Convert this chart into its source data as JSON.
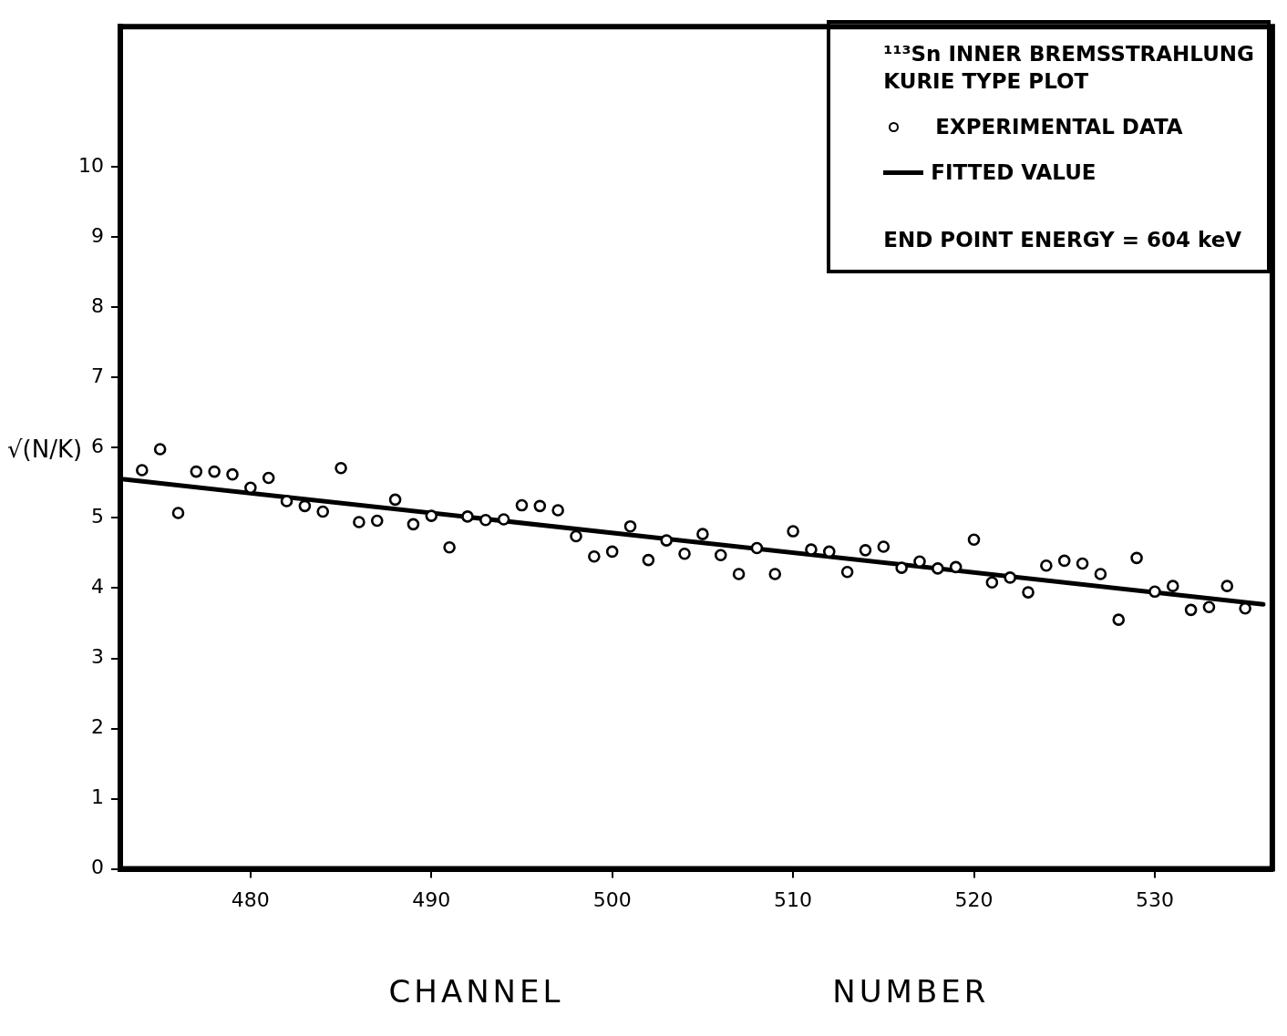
{
  "chart_data": {
    "type": "scatter",
    "title": "¹¹³Sn INNER BREMSSTRAHLUNG",
    "subtitle": "KURIE TYPE PLOT",
    "xlabel": "CHANNEL NUMBER",
    "ylabel": "√(N/K)",
    "annotations": [
      "END POINT ENERGY = 604 keV"
    ],
    "legend": "top right",
    "grid": false,
    "xlim": [
      472.8,
      536.5
    ],
    "xticks": [
      480,
      490,
      500,
      510,
      520,
      530
    ],
    "ylim": [
      0,
      12
    ],
    "yticks": [
      0,
      1,
      2,
      3,
      4,
      5,
      6,
      7,
      8,
      9,
      10
    ],
    "series": [
      {
        "name": "EXPERIMENTAL DATA",
        "marker": "circle",
        "color": "#000000",
        "x": [
          474,
          475,
          476,
          477,
          478,
          479,
          480,
          481,
          482,
          483,
          484,
          485,
          486,
          487,
          488,
          489,
          490,
          491,
          492,
          493,
          494,
          495,
          496,
          497,
          498,
          499,
          500,
          501,
          502,
          503,
          504,
          505,
          506,
          507,
          508,
          509,
          510,
          511,
          512,
          513,
          514,
          515,
          516,
          517,
          518,
          519,
          520,
          521,
          522,
          523,
          524,
          525,
          526,
          527,
          528,
          529,
          530,
          531,
          532,
          533,
          534,
          535
        ],
        "values": [
          5.68,
          5.98,
          5.07,
          5.66,
          5.66,
          5.62,
          5.43,
          5.57,
          5.24,
          5.17,
          5.09,
          5.71,
          4.94,
          4.96,
          5.26,
          4.91,
          5.03,
          4.58,
          5.02,
          4.97,
          4.98,
          5.18,
          5.17,
          5.11,
          4.74,
          4.45,
          4.52,
          4.88,
          4.4,
          4.68,
          4.49,
          4.77,
          4.47,
          4.2,
          4.57,
          4.2,
          4.81,
          4.55,
          4.52,
          4.23,
          4.54,
          4.59,
          4.29,
          4.38,
          4.28,
          4.3,
          4.69,
          4.08,
          4.15,
          3.94,
          4.32,
          4.39,
          4.35,
          4.2,
          3.55,
          4.43,
          3.95,
          4.03,
          3.69,
          3.73,
          4.03,
          3.71
        ]
      },
      {
        "name": "FITTED VALUE",
        "type": "line",
        "color": "#000000",
        "line_style": "solid",
        "x": [
          473,
          536
        ],
        "values": [
          5.55,
          3.77
        ]
      }
    ]
  }
}
